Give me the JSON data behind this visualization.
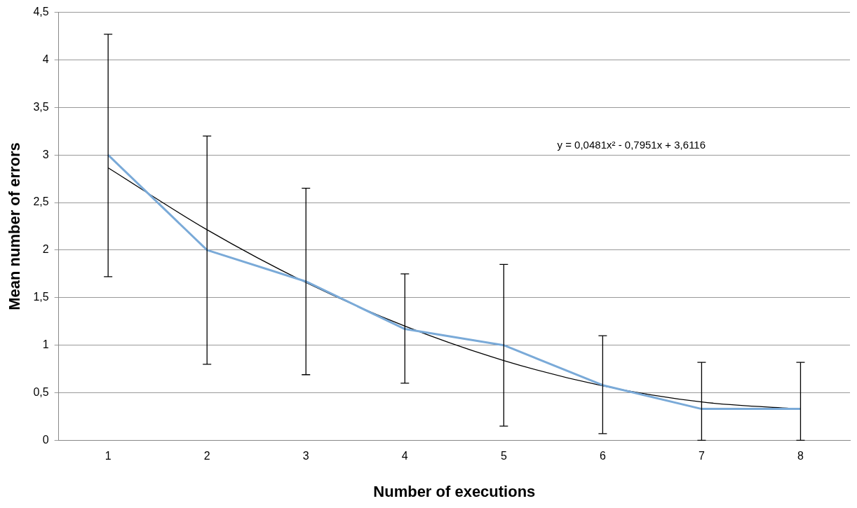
{
  "chart_data": {
    "type": "line",
    "xlabel": "Number of executions",
    "ylabel": "Mean number of errors",
    "categories": [
      "1",
      "2",
      "3",
      "4",
      "5",
      "6",
      "7",
      "8"
    ],
    "series": [
      {
        "color": "#7aaad8",
        "values": [
          3,
          2,
          1.67,
          1.17,
          1,
          0.58,
          0.33,
          0.33
        ],
        "errors": [
          [
            1.72,
            4.27
          ],
          [
            0.8,
            3.2
          ],
          [
            0.69,
            2.65
          ],
          [
            0.6,
            1.75
          ],
          [
            0.15,
            1.85
          ],
          [
            0.07,
            1.1
          ],
          [
            0,
            0.82
          ],
          [
            0,
            0.82
          ]
        ]
      },
      {
        "type": "line",
        "color": "#000000",
        "values": [
          2.865,
          2.214,
          1.659,
          1.201,
          0.839,
          0.573,
          0.403,
          0.329
        ]
      }
    ],
    "annotations": [
      "y = 0,0481x² - 0,7951x + 3,6116"
    ],
    "ylim": [
      0,
      4.5
    ],
    "yticks": [
      0,
      {
        "value": 0.5,
        "label": "0,5"
      },
      1,
      {
        "value": 1.5,
        "label": "1,5"
      },
      2,
      {
        "value": 2.5,
        "label": "2,5"
      },
      3,
      {
        "value": 3.5,
        "label": "3,5"
      },
      4,
      {
        "value": 4.5,
        "label": "4,5"
      }
    ],
    "grid": "y",
    "marker": "none"
  }
}
